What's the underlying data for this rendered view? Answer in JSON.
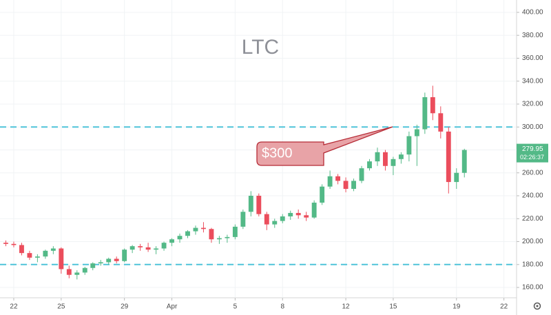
{
  "chart_data": {
    "type": "candlestick",
    "title": "LTC",
    "annotation": "$300",
    "x": [
      21.5,
      22,
      22.5,
      23,
      23.5,
      24,
      24.5,
      25,
      25.5,
      26,
      26.5,
      27,
      27.5,
      28,
      28.5,
      29,
      29.5,
      30,
      30.5,
      31,
      31.5,
      32,
      32.5,
      33,
      33.5,
      34,
      34.5,
      35,
      35.5,
      36,
      36.5,
      37,
      37.5,
      38,
      38.5,
      39,
      39.5,
      40,
      40.5,
      41,
      41.5,
      42,
      42.5,
      43,
      43.5,
      44,
      44.5,
      45,
      45.5,
      46,
      46.5,
      47,
      47.5,
      48,
      48.5,
      49,
      49.5,
      50,
      50.5
    ],
    "open": [
      199,
      198,
      197,
      190,
      186,
      187,
      192,
      194,
      176,
      171,
      173,
      177,
      181,
      182,
      185,
      183,
      193,
      196,
      195,
      193,
      194,
      199,
      202,
      205,
      209,
      212,
      211,
      202,
      203,
      204,
      213,
      226,
      240,
      224,
      215,
      218,
      222,
      225,
      223,
      221,
      234,
      248,
      257,
      253,
      246,
      253,
      264,
      270,
      278,
      266,
      272,
      276,
      292,
      298,
      326,
      312,
      296,
      252,
      260
    ],
    "high": [
      201,
      200,
      199,
      192,
      189,
      193,
      196,
      195,
      179,
      175,
      178,
      182,
      184,
      186,
      187,
      194,
      197,
      198,
      199,
      196,
      200,
      203,
      207,
      210,
      214,
      217,
      212,
      205,
      206,
      215,
      228,
      244,
      242,
      226,
      220,
      224,
      227,
      228,
      226,
      236,
      250,
      262,
      259,
      256,
      255,
      266,
      272,
      282,
      280,
      274,
      278,
      296,
      302,
      330,
      336,
      318,
      300,
      264,
      281
    ],
    "low": [
      196,
      195,
      188,
      184,
      182,
      185,
      189,
      172,
      168,
      167,
      171,
      175,
      179,
      180,
      181,
      182,
      190,
      192,
      191,
      189,
      192,
      196,
      199,
      203,
      206,
      208,
      199,
      198,
      199,
      202,
      211,
      222,
      222,
      210,
      212,
      216,
      219,
      220,
      218,
      220,
      232,
      246,
      250,
      243,
      244,
      251,
      262,
      266,
      262,
      258,
      268,
      270,
      266,
      294,
      306,
      290,
      242,
      246,
      256
    ],
    "close": [
      198,
      197,
      190,
      186,
      187,
      192,
      194,
      176,
      171,
      173,
      177,
      181,
      182,
      185,
      183,
      193,
      196,
      195,
      193,
      194,
      199,
      202,
      205,
      209,
      212,
      211,
      202,
      203,
      204,
      213,
      226,
      240,
      224,
      215,
      218,
      222,
      225,
      223,
      221,
      234,
      248,
      257,
      253,
      246,
      253,
      264,
      270,
      278,
      266,
      272,
      276,
      292,
      298,
      326,
      312,
      296,
      252,
      260,
      279.95
    ],
    "up_color": "#53b987",
    "down_color": "#eb4d5c",
    "xlim": [
      21.13,
      53.8
    ],
    "xticks": [
      22,
      25,
      29,
      {
        "value": 32,
        "label": "Apr"
      },
      {
        "value": 36,
        "label": "5"
      },
      {
        "value": 39,
        "label": "8"
      },
      {
        "value": 43,
        "label": "12"
      },
      {
        "value": 46,
        "label": "15"
      },
      {
        "value": 50,
        "label": "19"
      },
      {
        "value": 53,
        "label": "22"
      }
    ],
    "ylim": [
      151,
      410.8
    ],
    "yticks": [
      {
        "value": 160,
        "label": "160.00"
      },
      {
        "value": 180,
        "label": "180.00"
      },
      {
        "value": 200,
        "label": "200.00"
      },
      {
        "value": 220,
        "label": "220.00"
      },
      {
        "value": 240,
        "label": "240.00"
      },
      {
        "value": 260,
        "label": "260.00"
      },
      {
        "value": 280,
        "label": "280.00"
      },
      {
        "value": 300,
        "label": "300.00"
      },
      {
        "value": 320,
        "label": "320.00"
      },
      {
        "value": 340,
        "label": "340.00"
      },
      {
        "value": 360,
        "label": "360.00"
      },
      {
        "value": 380,
        "label": "380.00"
      },
      {
        "value": 400,
        "label": "400.00"
      }
    ],
    "grid": true,
    "hlines": [
      300,
      180
    ],
    "hline_color": "#4fc3d9",
    "last_price": 279.95,
    "countdown": "02:26:37",
    "last_price_color": "#53b987"
  }
}
